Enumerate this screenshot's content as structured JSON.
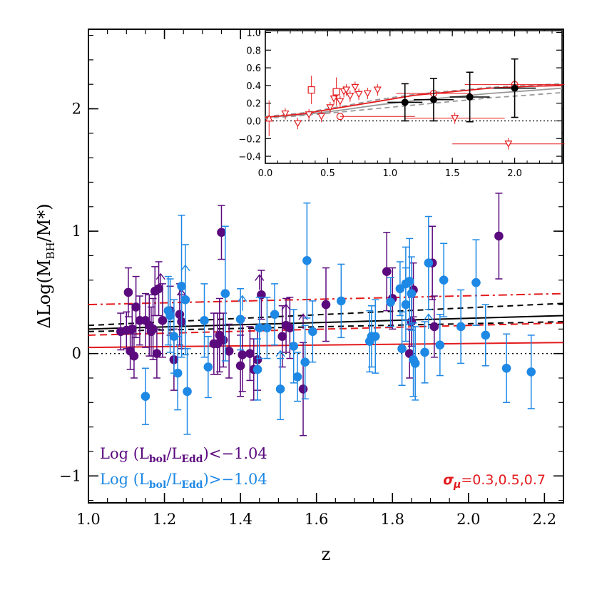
{
  "chart_data": {
    "type": "scatter",
    "xlabel": "z",
    "ylabel_parts": [
      "ΔLog(M",
      "BH",
      "/M*)"
    ],
    "xlim": [
      1.0,
      2.25
    ],
    "ylim": [
      -1.22,
      2.65
    ],
    "x_ticks": [
      "1.0",
      "1.2",
      "1.4",
      "1.6",
      "1.8",
      "2.0",
      "2.2"
    ],
    "y_ticks": [
      "−1",
      "0",
      "1",
      "2"
    ],
    "colors": {
      "low": "#5b0a7e",
      "high": "#1e88e5",
      "fit": "#e31a1c",
      "model": "#000000",
      "inset_gray": "#999999"
    },
    "legend": [
      {
        "pre": "Log (L",
        "s1": "bol",
        "mid": "/L",
        "s2": "Edd",
        "post": ")<−1.04",
        "color": "#5b0a7e"
      },
      {
        "pre": "Log (L",
        "s1": "bol",
        "mid": "/L",
        "s2": "Edd",
        "post": ")>−1.04",
        "color": "#1e88e5"
      }
    ],
    "sigma_label": {
      "symbol": "σ",
      "sub": "μ",
      "text": "=0.3,0.5,0.7",
      "color": "#e31a1c"
    },
    "series": [
      {
        "name": "Log (Lbol/LEdd)<−1.04",
        "color": "#5b0a7e",
        "points": [
          [
            1.085,
            0.18,
            0.15
          ],
          [
            1.1,
            0.19,
            0.15
          ],
          [
            1.105,
            0.5,
            0.2
          ],
          [
            1.11,
            0.02,
            0.15
          ],
          [
            1.12,
            -0.02,
            0.18
          ],
          [
            1.115,
            0.2,
            0.2
          ],
          [
            1.125,
            0.38,
            0.25
          ],
          [
            1.135,
            0.27,
            0.2
          ],
          [
            1.15,
            0.27,
            0.22
          ],
          [
            1.16,
            0.23,
            0.25
          ],
          [
            1.165,
            0.18,
            0.2
          ],
          [
            1.17,
            0.2,
            0.25
          ],
          [
            1.175,
            0.51,
            0.2
          ],
          [
            1.18,
            0.0,
            0.2
          ],
          [
            1.185,
            0.53,
            0.22
          ],
          [
            1.195,
            0.27,
            0.3
          ],
          [
            1.215,
            0.35,
            0.2
          ],
          [
            1.225,
            -0.05,
            0.25
          ],
          [
            1.24,
            0.32,
            0.25
          ],
          [
            1.245,
            0.26,
            0.22
          ],
          [
            1.33,
            0.08,
            0.25
          ],
          [
            1.34,
            0.08,
            0.25
          ],
          [
            1.345,
            0.15,
            0.3
          ],
          [
            1.35,
            0.99,
            0.22
          ],
          [
            1.355,
            0.11,
            0.22
          ],
          [
            1.37,
            0.02,
            0.22
          ],
          [
            1.4,
            -0.1,
            0.25
          ],
          [
            1.405,
            -0.01,
            0.3
          ],
          [
            1.425,
            0.0,
            0.22
          ],
          [
            1.435,
            -0.13,
            0.25
          ],
          [
            1.445,
            -0.05,
            0.25
          ],
          [
            1.455,
            0.48,
            0.2
          ],
          [
            1.51,
            0.14,
            0.25
          ],
          [
            1.52,
            0.23,
            0.22
          ],
          [
            1.53,
            0.21,
            0.25
          ],
          [
            1.565,
            -0.29,
            0.38
          ],
          [
            1.625,
            0.4,
            0.3
          ],
          [
            1.785,
            0.67,
            0.32
          ],
          [
            1.8,
            0.45,
            0.25
          ],
          [
            1.845,
            0.0,
            0.2
          ],
          [
            1.85,
            0.26,
            0.2
          ],
          [
            1.855,
            0.52,
            0.22
          ],
          [
            1.905,
            0.74,
            0.3
          ],
          [
            1.91,
            0.22,
            0.25
          ],
          [
            2.08,
            0.96,
            0.35
          ]
        ],
        "limits": [
          [
            1.19,
            0.53
          ],
          [
            1.245,
            0.4
          ],
          [
            1.45,
            0.52
          ],
          [
            1.52,
            0.28
          ],
          [
            1.565,
            0.2
          ]
        ]
      },
      {
        "name": "Log (Lbol/LEdd)>−1.04",
        "color": "#1e88e5",
        "points": [
          [
            1.15,
            -0.35,
            0.23
          ],
          [
            1.21,
            0.35,
            0.28
          ],
          [
            1.215,
            0.31,
            0.3
          ],
          [
            1.225,
            0.14,
            0.3
          ],
          [
            1.235,
            -0.16,
            0.3
          ],
          [
            1.245,
            0.55,
            0.58
          ],
          [
            1.255,
            0.44,
            0.45
          ],
          [
            1.26,
            -0.31,
            0.35
          ],
          [
            1.305,
            0.27,
            0.3
          ],
          [
            1.315,
            -0.11,
            0.25
          ],
          [
            1.36,
            0.49,
            0.55
          ],
          [
            1.4,
            0.28,
            0.25
          ],
          [
            1.45,
            0.21,
            0.25
          ],
          [
            1.445,
            -0.13,
            0.25
          ],
          [
            1.47,
            0.21,
            0.25
          ],
          [
            1.49,
            0.32,
            0.25
          ],
          [
            1.505,
            -0.29,
            0.25
          ],
          [
            1.54,
            0.06,
            0.3
          ],
          [
            1.55,
            -0.19,
            0.2
          ],
          [
            1.575,
            0.76,
            0.47
          ],
          [
            1.59,
            0.18,
            0.25
          ],
          [
            1.57,
            -0.07,
            0.3
          ],
          [
            1.665,
            0.43,
            0.3
          ],
          [
            1.74,
            0.1,
            0.25
          ],
          [
            1.745,
            0.14,
            0.25
          ],
          [
            1.755,
            0.14,
            0.3
          ],
          [
            1.795,
            0.42,
            0.2
          ],
          [
            1.82,
            0.53,
            0.22
          ],
          [
            1.825,
            0.04,
            0.3
          ],
          [
            1.835,
            0.57,
            0.3
          ],
          [
            1.835,
            0.4,
            0.3
          ],
          [
            1.845,
            0.59,
            0.35
          ],
          [
            1.85,
            0.49,
            0.3
          ],
          [
            1.855,
            -0.05,
            0.3
          ],
          [
            1.86,
            -0.08,
            0.3
          ],
          [
            1.885,
            0.01,
            0.25
          ],
          [
            1.895,
            0.74,
            0.38
          ],
          [
            1.925,
            0.07,
            0.25
          ],
          [
            1.935,
            0.6,
            0.3
          ],
          [
            1.98,
            0.22,
            0.3
          ],
          [
            2.02,
            0.58,
            0.35
          ],
          [
            2.045,
            0.15,
            0.25
          ],
          [
            2.1,
            -0.12,
            0.28
          ],
          [
            2.165,
            -0.15,
            0.3
          ]
        ],
        "limits": [
          [
            1.255,
            0.6
          ],
          [
            1.405,
            0.35
          ],
          [
            1.505,
            -0.1
          ],
          [
            1.895,
            0.2
          ]
        ]
      }
    ],
    "model_lines": [
      {
        "role": "black-solid",
        "x": [
          1.0,
          2.25
        ],
        "y": [
          0.2,
          0.31
        ],
        "color": "#000000",
        "dash": ""
      },
      {
        "role": "black-dashed-upper",
        "x": [
          1.0,
          2.25
        ],
        "y": [
          0.23,
          0.41
        ],
        "color": "#000000",
        "dash": "8,6"
      },
      {
        "role": "black-dashed-lower",
        "x": [
          1.0,
          2.25
        ],
        "y": [
          0.18,
          0.26
        ],
        "color": "#000000",
        "dash": "8,6"
      },
      {
        "role": "red-solid-sigma0.3",
        "x": [
          1.0,
          2.25
        ],
        "y": [
          0.05,
          0.09
        ],
        "color": "#e31a1c",
        "dash": ""
      },
      {
        "role": "red-dashed-sigma0.5",
        "x": [
          1.0,
          2.25
        ],
        "y": [
          0.15,
          0.25
        ],
        "color": "#e31a1c",
        "dash": "10,6"
      },
      {
        "role": "red-dashdot-sigma0.7",
        "x": [
          1.0,
          2.25
        ],
        "y": [
          0.4,
          0.49
        ],
        "color": "#e31a1c",
        "dash": "12,5,3,5"
      }
    ],
    "inset": {
      "xlim": [
        0.0,
        2.38
      ],
      "ylim": [
        -0.48,
        1.02
      ],
      "x_ticks": [
        "0.0",
        "0.5",
        "1.0",
        "1.5",
        "2.0"
      ],
      "y_ticks": [
        "1.0",
        "0.8",
        "0.6",
        "0.4",
        "0.2",
        "0.0",
        "−0.2",
        "−0.4"
      ],
      "binned": [
        {
          "x": 1.12,
          "y": 0.21,
          "xerr": 0.14,
          "yerr": 0.21
        },
        {
          "x": 1.35,
          "y": 0.24,
          "xerr": 0.16,
          "yerr": 0.24
        },
        {
          "x": 1.64,
          "y": 0.27,
          "xerr": 0.16,
          "yerr": 0.28
        },
        {
          "x": 2.0,
          "y": 0.37,
          "xerr": 0.17,
          "yerr": 0.33
        }
      ],
      "literature": {
        "triangles_down": [
          [
            0.16,
            0.08
          ],
          [
            0.26,
            -0.03
          ],
          [
            0.35,
            0.07
          ],
          [
            0.45,
            0.05
          ],
          [
            0.52,
            0.15
          ],
          [
            0.55,
            0.25
          ],
          [
            0.57,
            0.3
          ],
          [
            0.6,
            0.22
          ],
          [
            0.63,
            0.33
          ],
          [
            0.65,
            0.35
          ],
          [
            0.68,
            0.28
          ],
          [
            0.72,
            0.38
          ],
          [
            0.75,
            0.3
          ],
          [
            0.82,
            0.31
          ],
          [
            0.9,
            0.35
          ],
          [
            1.52,
            0.03
          ],
          [
            1.95,
            -0.26
          ]
        ],
        "circles": [
          [
            0.6,
            0.05
          ],
          [
            1.35,
            0.31
          ],
          [
            2.0,
            0.41
          ]
        ],
        "squares": [
          [
            0.37,
            0.35
          ],
          [
            0.57,
            0.33
          ]
        ],
        "triangles_up": [
          [
            0.03,
            0.03
          ]
        ],
        "hbars": [
          [
            0.9,
            0.05,
            0.3
          ],
          [
            1.95,
            -0.26,
            0.45
          ],
          [
            1.52,
            0.03,
            0.4
          ],
          [
            1.35,
            0.31,
            0.3
          ],
          [
            2.0,
            0.41,
            0.4
          ]
        ]
      },
      "curves": [
        {
          "style": "solid",
          "color": "#999999",
          "points": [
            [
              0.0,
              0.04
            ],
            [
              0.3,
              0.07
            ],
            [
              0.6,
              0.12
            ],
            [
              0.9,
              0.18
            ],
            [
              1.2,
              0.23
            ],
            [
              1.5,
              0.27
            ],
            [
              1.8,
              0.31
            ],
            [
              2.1,
              0.34
            ],
            [
              2.38,
              0.37
            ]
          ]
        },
        {
          "style": "dashed",
          "color": "#999999",
          "points": [
            [
              0.0,
              0.05
            ],
            [
              0.3,
              0.09
            ],
            [
              0.6,
              0.16
            ],
            [
              0.9,
              0.24
            ],
            [
              1.2,
              0.3
            ],
            [
              1.5,
              0.34
            ],
            [
              1.8,
              0.38
            ],
            [
              2.1,
              0.4
            ],
            [
              2.38,
              0.42
            ]
          ]
        },
        {
          "style": "dashed",
          "color": "#999999",
          "points": [
            [
              0.0,
              0.03
            ],
            [
              0.3,
              0.06
            ],
            [
              0.6,
              0.1
            ],
            [
              0.9,
              0.14
            ],
            [
              1.2,
              0.18
            ],
            [
              1.5,
              0.22
            ],
            [
              1.8,
              0.26
            ],
            [
              2.1,
              0.29
            ],
            [
              2.38,
              0.32
            ]
          ]
        },
        {
          "style": "solid",
          "color": "#e31a1c",
          "points": [
            [
              0.0,
              0.04
            ],
            [
              0.3,
              0.08
            ],
            [
              0.6,
              0.15
            ],
            [
              0.9,
              0.22
            ],
            [
              1.2,
              0.29
            ],
            [
              1.5,
              0.33
            ],
            [
              1.8,
              0.37
            ],
            [
              2.1,
              0.39
            ],
            [
              2.38,
              0.4
            ]
          ]
        }
      ]
    }
  }
}
